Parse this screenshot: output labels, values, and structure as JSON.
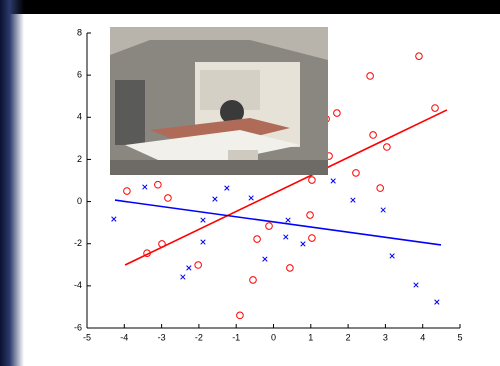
{
  "chart_data": {
    "type": "scatter",
    "xlim": [
      -5,
      5
    ],
    "xticks": [
      -5,
      -4,
      -3,
      -2,
      -1,
      0,
      1,
      2,
      3,
      4,
      5
    ],
    "ylim": [
      -6,
      8
    ],
    "yticks": [
      -6,
      -4,
      -2,
      0,
      2,
      4,
      6,
      8
    ],
    "series": [
      {
        "color": "#ff0000",
        "marker": "o",
        "x": [
          -3.93,
          -3.1,
          -2.83,
          -3.39,
          -2.99,
          -2.02,
          -0.9,
          -0.55,
          -0.44,
          -0.12,
          0.44,
          0.98,
          1.03,
          1.03,
          1.49,
          1.41,
          1.7,
          2.21,
          2.59,
          2.67,
          3.04,
          2.86,
          3.9,
          4.33
        ],
        "values": [
          0.5,
          0.8,
          0.17,
          -2.45,
          -2.01,
          -3.01,
          -5.4,
          -3.72,
          -1.78,
          -1.16,
          -3.15,
          -0.64,
          -1.73,
          1.02,
          2.16,
          3.92,
          4.2,
          1.36,
          5.96,
          3.16,
          2.59,
          0.64,
          6.9,
          4.44
        ]
      },
      {
        "color": "#0000ff",
        "marker": "x",
        "x": [
          -4.28,
          -3.45,
          -2.43,
          -2.27,
          -1.89,
          -1.89,
          -1.57,
          -1.25,
          -0.6,
          -0.23,
          0.33,
          0.39,
          0.79,
          1.6,
          2.13,
          2.94,
          3.18,
          3.82,
          4.38
        ],
        "values": [
          -0.83,
          0.69,
          -3.58,
          -3.15,
          -1.92,
          -0.88,
          0.12,
          0.64,
          0.17,
          -2.73,
          -1.68,
          -0.88,
          -2.01,
          0.98,
          0.07,
          -0.4,
          -2.58,
          -3.96,
          -4.77
        ]
      },
      {
        "color": "#ff0000",
        "marker": "line",
        "x": [
          -3.98,
          4.65
        ],
        "values": [
          -3.01,
          4.35
        ]
      },
      {
        "color": "#0000ff",
        "marker": "line",
        "x": [
          -4.25,
          4.49
        ],
        "values": [
          0.07,
          -2.06
        ]
      }
    ]
  }
}
